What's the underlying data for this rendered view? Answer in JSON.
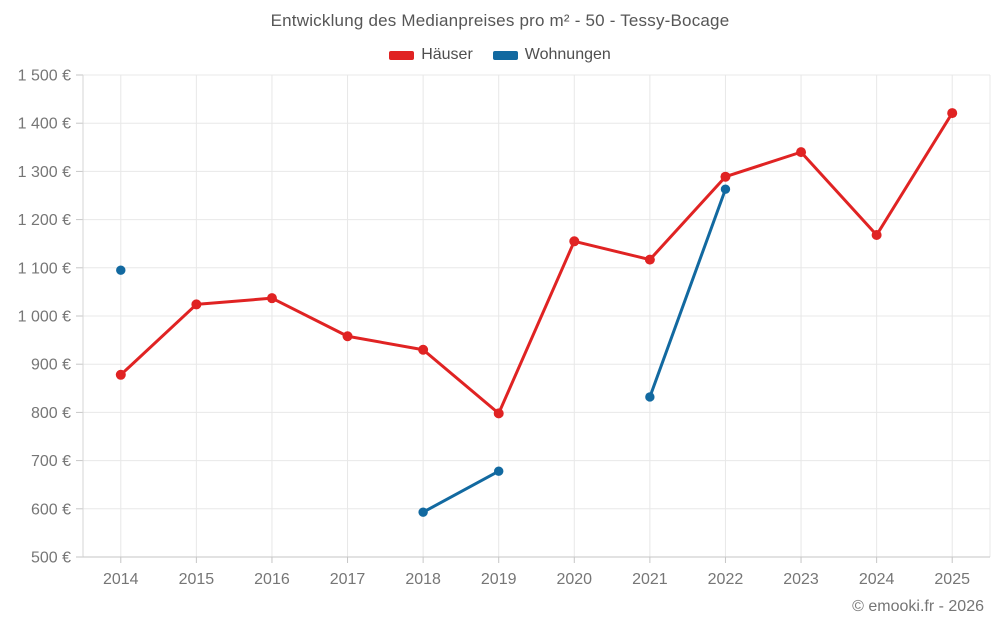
{
  "title": "Entwicklung des Medianpreises pro m² - 50 - Tessy-Bocage",
  "footer": "© emooki.fr - 2026",
  "legend": {
    "items": [
      {
        "label": "Häuser",
        "color": "#e02323"
      },
      {
        "label": "Wohnungen",
        "color": "#1269a0"
      }
    ]
  },
  "chart_data": {
    "type": "line",
    "title": "Entwicklung des Medianpreises pro m² - 50 - Tessy-Bocage",
    "categories": [
      "2014",
      "2015",
      "2016",
      "2017",
      "2018",
      "2019",
      "2020",
      "2021",
      "2022",
      "2023",
      "2024",
      "2025"
    ],
    "series": [
      {
        "name": "Häuser",
        "color": "#e02323",
        "values": [
          878,
          1024,
          1037,
          958,
          930,
          798,
          1155,
          1117,
          1289,
          1340,
          1168,
          1421
        ]
      },
      {
        "name": "Wohnungen",
        "color": "#1269a0",
        "values": [
          1095,
          null,
          null,
          null,
          593,
          678,
          null,
          832,
          1263,
          null,
          null,
          null
        ]
      }
    ],
    "xlabel": "",
    "ylabel": "",
    "ylim": [
      500,
      1500
    ],
    "ytick_step": 100,
    "y_ticks": [
      {
        "value": 500,
        "label": "500 €"
      },
      {
        "value": 600,
        "label": "600 €"
      },
      {
        "value": 700,
        "label": "700 €"
      },
      {
        "value": 800,
        "label": "800 €"
      },
      {
        "value": 900,
        "label": "900 €"
      },
      {
        "value": 1000,
        "label": "1 000 €"
      },
      {
        "value": 1100,
        "label": "1 100 €"
      },
      {
        "value": 1200,
        "label": "1 200 €"
      },
      {
        "value": 1300,
        "label": "1 300 €"
      },
      {
        "value": 1400,
        "label": "1 400 €"
      },
      {
        "value": 1500,
        "label": "1 500 €"
      }
    ],
    "grid": true,
    "legend_position": "top",
    "currency": "€"
  }
}
